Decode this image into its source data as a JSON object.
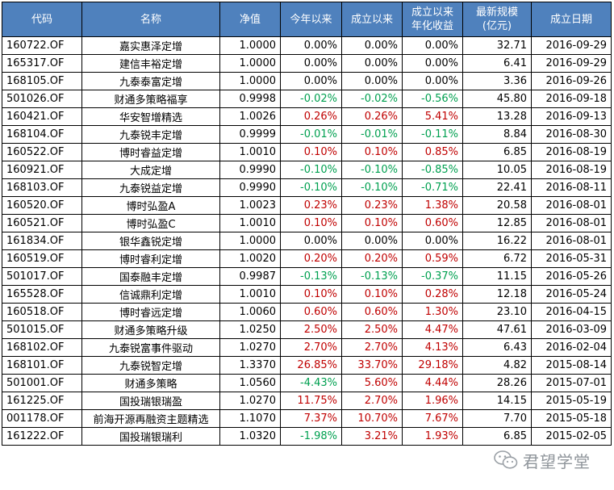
{
  "table": {
    "headers": [
      "代码",
      "名称",
      "净值",
      "今年以来",
      "成立以来",
      "成立以来\n年化收益",
      "最新规模\n(亿元)",
      "成立日期"
    ],
    "rows": [
      [
        "160722.OF",
        "嘉实惠泽定增",
        "1.0000",
        "0.00%",
        "0.00%",
        "0.00%",
        "32.71",
        "2016-09-29"
      ],
      [
        "165317.OF",
        "建信丰裕定增",
        "1.0000",
        "0.00%",
        "0.00%",
        "0.00%",
        "6.41",
        "2016-09-29"
      ],
      [
        "168105.OF",
        "九泰泰富定增",
        "1.0000",
        "0.00%",
        "0.00%",
        "0.00%",
        "3.36",
        "2016-09-26"
      ],
      [
        "501026.OF",
        "财通多策略福享",
        "0.9998",
        "-0.02%",
        "-0.02%",
        "-0.56%",
        "45.80",
        "2016-09-18"
      ],
      [
        "160421.OF",
        "华安智增精选",
        "1.0026",
        "0.26%",
        "0.26%",
        "5.41%",
        "13.28",
        "2016-09-13"
      ],
      [
        "168104.OF",
        "九泰锐丰定增",
        "0.9999",
        "-0.01%",
        "-0.01%",
        "-0.11%",
        "8.84",
        "2016-08-30"
      ],
      [
        "160522.OF",
        "博时睿益定增",
        "1.0010",
        "0.10%",
        "0.10%",
        "0.85%",
        "6.85",
        "2016-08-19"
      ],
      [
        "160921.OF",
        "大成定增",
        "0.9990",
        "-0.10%",
        "-0.10%",
        "-0.85%",
        "10.05",
        "2016-08-19"
      ],
      [
        "168103.OF",
        "九泰锐益定增",
        "0.9990",
        "-0.10%",
        "-0.10%",
        "-0.71%",
        "22.41",
        "2016-08-11"
      ],
      [
        "160520.OF",
        "博时弘盈A",
        "1.0023",
        "0.23%",
        "0.23%",
        "1.38%",
        "20.58",
        "2016-08-01"
      ],
      [
        "160521.OF",
        "博时弘盈C",
        "1.0010",
        "0.10%",
        "0.10%",
        "0.60%",
        "12.85",
        "2016-08-01"
      ],
      [
        "161834.OF",
        "银华鑫锐定增",
        "1.0000",
        "0.00%",
        "0.00%",
        "0.00%",
        "16.22",
        "2016-08-01"
      ],
      [
        "160519.OF",
        "博时睿利定增",
        "1.0020",
        "0.20%",
        "0.20%",
        "0.59%",
        "6.72",
        "2016-05-31"
      ],
      [
        "501017.OF",
        "国泰融丰定增",
        "0.9987",
        "-0.13%",
        "-0.13%",
        "-0.37%",
        "11.15",
        "2016-05-26"
      ],
      [
        "165528.OF",
        "信诚鼎利定增",
        "1.0010",
        "0.10%",
        "0.10%",
        "0.28%",
        "12.18",
        "2016-05-24"
      ],
      [
        "160518.OF",
        "博时睿远定增",
        "1.0060",
        "0.60%",
        "0.60%",
        "1.30%",
        "23.10",
        "2016-04-15"
      ],
      [
        "501015.OF",
        "财通多策略升级",
        "1.0250",
        "2.50%",
        "2.50%",
        "4.47%",
        "47.61",
        "2016-03-09"
      ],
      [
        "168102.OF",
        "九泰锐富事件驱动",
        "1.0270",
        "2.70%",
        "2.70%",
        "4.13%",
        "6.43",
        "2016-02-04"
      ],
      [
        "168101.OF",
        "九泰锐智定增",
        "1.3370",
        "26.85%",
        "33.70%",
        "29.18%",
        "4.82",
        "2015-08-14"
      ],
      [
        "501001.OF",
        "财通多策略",
        "1.0560",
        "-4.43%",
        "5.60%",
        "4.44%",
        "28.26",
        "2015-07-01"
      ],
      [
        "161225.OF",
        "国投瑞银瑞盈",
        "1.0270",
        "11.75%",
        "2.70%",
        "1.96%",
        "14.15",
        "2015-05-19"
      ],
      [
        "001178.OF",
        "前海开源再融资主题精选",
        "1.1070",
        "7.37%",
        "10.70%",
        "7.67%",
        "7.70",
        "2015-05-18"
      ],
      [
        "161222.OF",
        "国投瑞银瑞利",
        "1.0320",
        "-1.98%",
        "3.21%",
        "1.93%",
        "6.85",
        "2015-02-05"
      ]
    ]
  },
  "colors": {
    "header_bg": "#4f81bd",
    "positive": "#c00000",
    "negative": "#00a050"
  },
  "watermark": {
    "icon": "wechat-icon",
    "text": "君望学堂"
  }
}
